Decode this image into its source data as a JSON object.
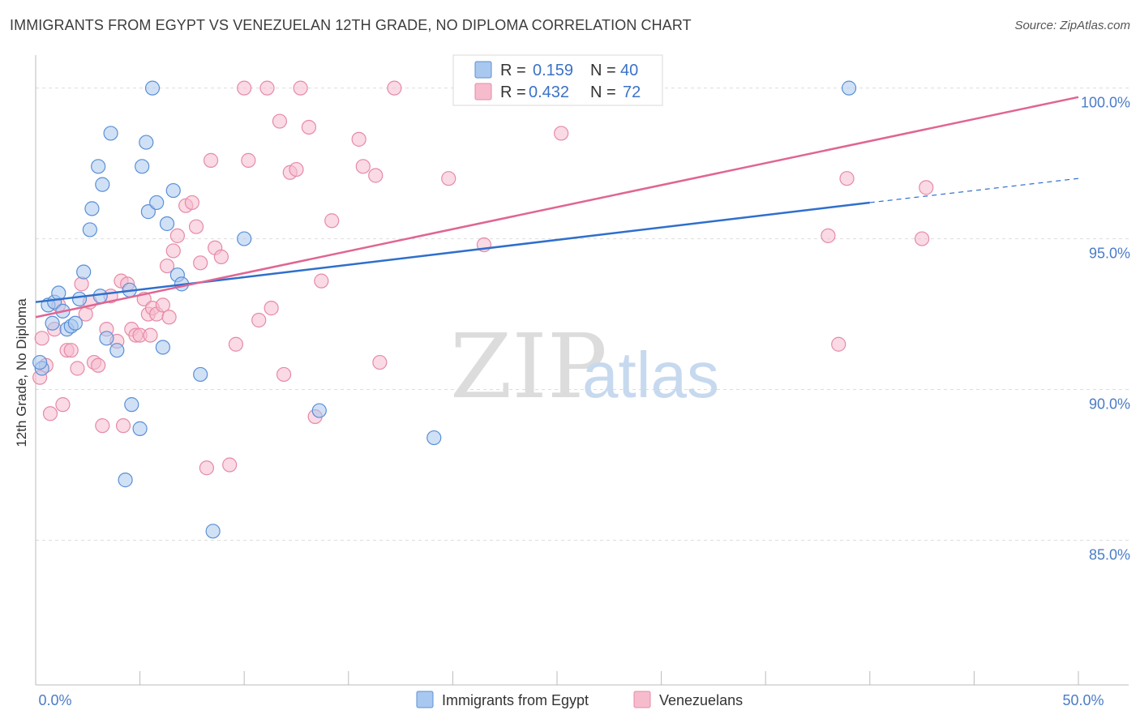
{
  "header": {
    "title": "IMMIGRANTS FROM EGYPT VS VENEZUELAN 12TH GRADE, NO DIPLOMA CORRELATION CHART",
    "source": "Source: ZipAtlas.com"
  },
  "watermark": {
    "zip": "ZIP",
    "atlas": "atlas"
  },
  "legend": {
    "rows": [
      {
        "r_label": "R =",
        "r_value": "0.159",
        "n_label": "N =",
        "n_value": "40"
      },
      {
        "r_label": "R =",
        "r_value": "0.432",
        "n_label": "N =",
        "n_value": "72"
      }
    ]
  },
  "bottom_legend": {
    "series1": "Immigrants from Egypt",
    "series2": "Venezuelans"
  },
  "colors": {
    "egypt_fill": "#a9c8ef",
    "egypt_stroke": "#5a8fd6",
    "egypt_line": "#2f6fcc",
    "ven_fill": "#f6bccd",
    "ven_stroke": "#e68aa6",
    "ven_line": "#e06592",
    "grid": "#dddddd",
    "axis_text": "#4a7cc7"
  },
  "chart_data": {
    "type": "scatter",
    "title": "IMMIGRANTS FROM EGYPT VS VENEZUELAN 12TH GRADE, NO DIPLOMA CORRELATION CHART",
    "xlabel": "",
    "ylabel": "12th Grade, No Diploma",
    "xlim": [
      0,
      50
    ],
    "ylim": [
      80.2,
      101.2
    ],
    "x_tick_labels": [
      {
        "value": 0,
        "label": "0.0%"
      },
      {
        "value": 50,
        "label": "50.0%"
      }
    ],
    "x_minor_ticks": [
      0,
      5,
      10,
      15,
      20,
      25,
      30,
      35,
      40,
      45,
      50
    ],
    "y_ticks": [
      {
        "value": 100,
        "label": "100.0%"
      },
      {
        "value": 95,
        "label": "95.0%"
      },
      {
        "value": 90,
        "label": "90.0%"
      },
      {
        "value": 85,
        "label": "85.0%"
      }
    ],
    "series": [
      {
        "name": "Immigrants from Egypt",
        "r": 0.159,
        "n": 40,
        "trend": {
          "x0": 0,
          "y0": 92.9,
          "x1": 40,
          "y1": 96.2,
          "dash_to_x": 50,
          "dash_to_y": 97.0
        },
        "points": [
          [
            0.3,
            90.7
          ],
          [
            0.6,
            92.8
          ],
          [
            0.8,
            92.2
          ],
          [
            0.9,
            92.9
          ],
          [
            1.1,
            93.2
          ],
          [
            1.3,
            92.6
          ],
          [
            1.5,
            92.0
          ],
          [
            1.7,
            92.1
          ],
          [
            1.9,
            92.2
          ],
          [
            2.1,
            93.0
          ],
          [
            2.3,
            93.9
          ],
          [
            2.6,
            95.3
          ],
          [
            2.7,
            96.0
          ],
          [
            3.0,
            97.4
          ],
          [
            3.2,
            96.8
          ],
          [
            3.1,
            93.1
          ],
          [
            3.4,
            91.7
          ],
          [
            3.6,
            98.5
          ],
          [
            3.9,
            91.3
          ],
          [
            4.3,
            87.0
          ],
          [
            4.5,
            93.3
          ],
          [
            4.6,
            89.5
          ],
          [
            5.0,
            88.7
          ],
          [
            5.1,
            97.4
          ],
          [
            5.3,
            98.2
          ],
          [
            5.4,
            95.9
          ],
          [
            5.6,
            100.0
          ],
          [
            5.8,
            96.2
          ],
          [
            6.1,
            91.4
          ],
          [
            6.3,
            95.5
          ],
          [
            6.6,
            96.6
          ],
          [
            6.8,
            93.8
          ],
          [
            7.0,
            93.5
          ],
          [
            7.9,
            90.5
          ],
          [
            8.5,
            85.3
          ],
          [
            10.0,
            95.0
          ],
          [
            13.6,
            89.3
          ],
          [
            19.1,
            88.4
          ],
          [
            39.0,
            100.0
          ],
          [
            0.2,
            90.9
          ]
        ]
      },
      {
        "name": "Venezuelans",
        "r": 0.432,
        "n": 72,
        "trend": {
          "x0": 0,
          "y0": 92.4,
          "x1": 50,
          "y1": 99.7
        },
        "points": [
          [
            0.2,
            90.4
          ],
          [
            0.3,
            91.7
          ],
          [
            0.5,
            90.8
          ],
          [
            0.7,
            89.2
          ],
          [
            0.9,
            92.0
          ],
          [
            1.1,
            92.8
          ],
          [
            1.3,
            89.5
          ],
          [
            1.5,
            91.3
          ],
          [
            1.7,
            91.3
          ],
          [
            2.0,
            90.7
          ],
          [
            2.2,
            93.5
          ],
          [
            2.4,
            92.5
          ],
          [
            2.6,
            92.9
          ],
          [
            2.8,
            90.9
          ],
          [
            3.0,
            90.8
          ],
          [
            3.2,
            88.8
          ],
          [
            3.4,
            92.0
          ],
          [
            3.6,
            93.1
          ],
          [
            3.9,
            91.6
          ],
          [
            4.1,
            93.6
          ],
          [
            4.2,
            88.8
          ],
          [
            4.4,
            93.5
          ],
          [
            4.6,
            92.0
          ],
          [
            4.8,
            91.8
          ],
          [
            5.0,
            91.8
          ],
          [
            5.2,
            93.0
          ],
          [
            5.4,
            92.5
          ],
          [
            5.6,
            92.7
          ],
          [
            5.8,
            92.5
          ],
          [
            6.1,
            92.8
          ],
          [
            6.3,
            94.1
          ],
          [
            6.4,
            92.4
          ],
          [
            6.6,
            94.6
          ],
          [
            6.8,
            95.1
          ],
          [
            7.2,
            96.1
          ],
          [
            7.5,
            96.2
          ],
          [
            7.7,
            95.4
          ],
          [
            7.9,
            94.2
          ],
          [
            8.2,
            87.4
          ],
          [
            8.4,
            97.6
          ],
          [
            8.6,
            94.7
          ],
          [
            8.9,
            94.4
          ],
          [
            9.3,
            87.5
          ],
          [
            9.6,
            91.5
          ],
          [
            10.0,
            100.0
          ],
          [
            10.2,
            97.6
          ],
          [
            10.7,
            92.3
          ],
          [
            11.1,
            100.0
          ],
          [
            11.3,
            92.7
          ],
          [
            11.7,
            98.9
          ],
          [
            11.9,
            90.5
          ],
          [
            12.2,
            97.2
          ],
          [
            12.5,
            97.3
          ],
          [
            12.7,
            100.0
          ],
          [
            13.1,
            98.7
          ],
          [
            13.4,
            89.1
          ],
          [
            13.7,
            93.6
          ],
          [
            14.2,
            95.6
          ],
          [
            15.5,
            98.3
          ],
          [
            15.7,
            97.4
          ],
          [
            16.3,
            97.1
          ],
          [
            16.5,
            90.9
          ],
          [
            17.2,
            100.0
          ],
          [
            19.8,
            97.0
          ],
          [
            21.5,
            94.8
          ],
          [
            25.2,
            98.5
          ],
          [
            38.0,
            95.1
          ],
          [
            38.9,
            97.0
          ],
          [
            42.5,
            95.0
          ],
          [
            42.7,
            96.7
          ],
          [
            38.5,
            91.5
          ],
          [
            5.5,
            91.8
          ]
        ]
      }
    ]
  }
}
